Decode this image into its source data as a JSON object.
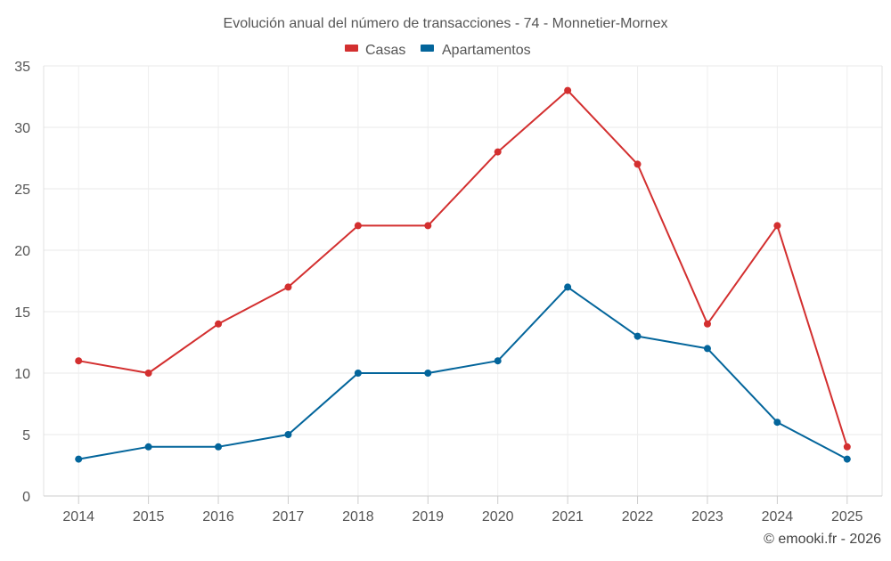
{
  "chart_data": {
    "type": "line",
    "title": "Evolución anual del número de transacciones - 74 - Monnetier-Mornex",
    "xlabel": "",
    "ylabel": "",
    "categories": [
      "2014",
      "2015",
      "2016",
      "2017",
      "2018",
      "2019",
      "2020",
      "2021",
      "2022",
      "2023",
      "2024",
      "2025"
    ],
    "ylim": [
      0,
      35
    ],
    "yticks": [
      "0",
      "5",
      "10",
      "15",
      "20",
      "25",
      "30",
      "35"
    ],
    "grid": true,
    "legend_position": "top-center",
    "series": [
      {
        "name": "Casas",
        "color": "#d32f2f",
        "values": [
          11,
          10,
          14,
          17,
          22,
          22,
          28,
          33,
          27,
          14,
          22,
          4
        ]
      },
      {
        "name": "Apartamentos",
        "color": "#03659b",
        "values": [
          3,
          4,
          4,
          5,
          10,
          10,
          11,
          17,
          13,
          12,
          6,
          3
        ]
      }
    ],
    "credit": "© emooki.fr - 2026"
  }
}
